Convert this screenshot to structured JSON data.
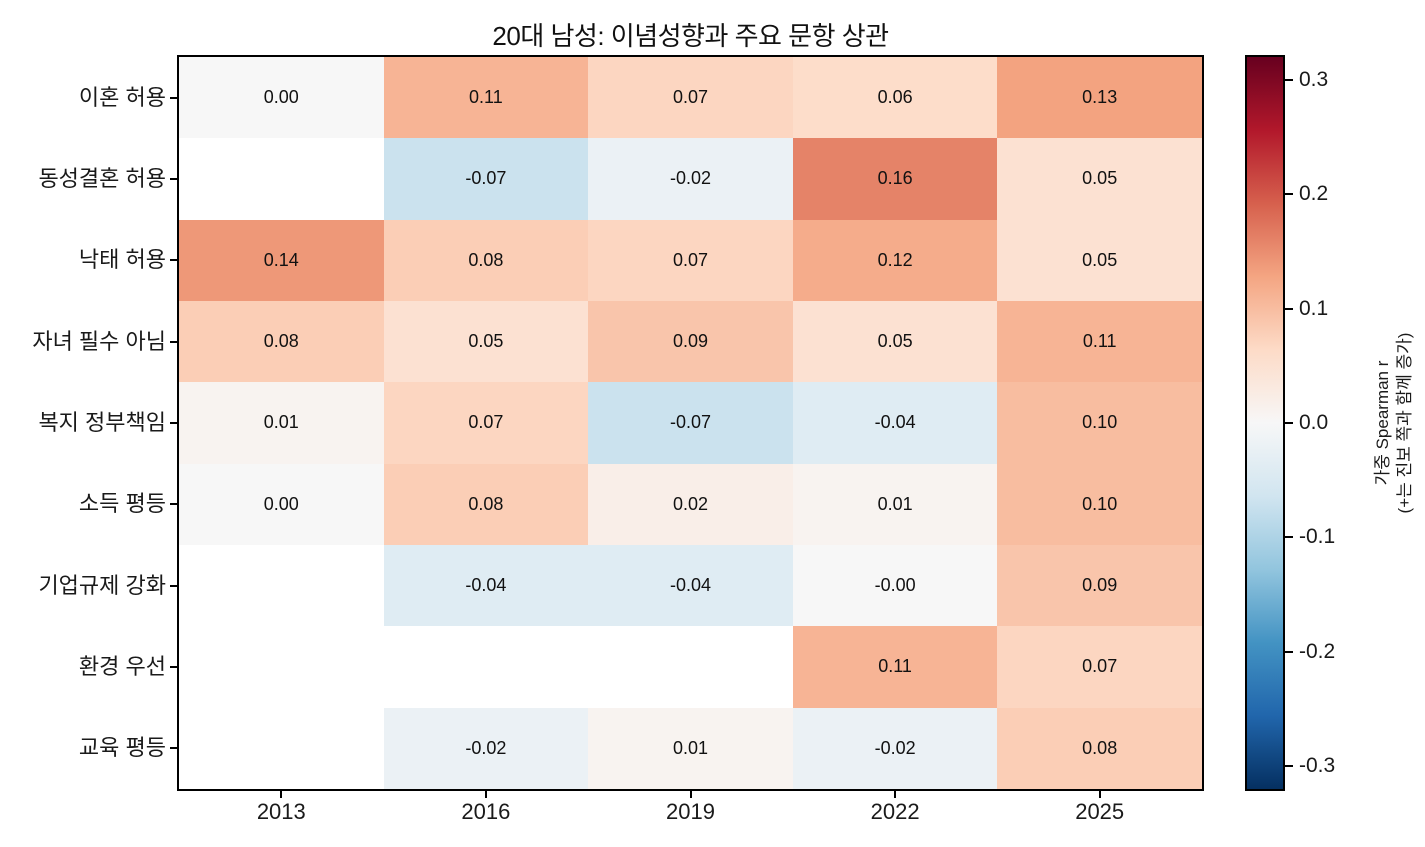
{
  "chart_data": {
    "type": "heatmap",
    "title": "20대 남성: 이념성향과 주요 문항 상관",
    "columns": [
      "2013",
      "2016",
      "2019",
      "2022",
      "2025"
    ],
    "rows": [
      "이혼 허용",
      "동성결혼 허용",
      "낙태 허용",
      "자녀 필수 아님",
      "복지 정부책임",
      "소득 평등",
      "기업규제 강화",
      "환경 우선",
      "교육 평등"
    ],
    "values": [
      [
        0.0,
        0.11,
        0.07,
        0.06,
        0.13
      ],
      [
        null,
        -0.07,
        -0.02,
        0.16,
        0.05
      ],
      [
        0.14,
        0.08,
        0.07,
        0.12,
        0.05
      ],
      [
        0.08,
        0.05,
        0.09,
        0.05,
        0.11
      ],
      [
        0.01,
        0.07,
        -0.07,
        -0.04,
        0.1
      ],
      [
        0.0,
        0.08,
        0.02,
        0.01,
        0.1
      ],
      [
        null,
        -0.04,
        -0.04,
        -0.0,
        0.09
      ],
      [
        null,
        null,
        null,
        0.11,
        0.07
      ],
      [
        null,
        -0.02,
        0.01,
        -0.02,
        0.08
      ]
    ],
    "labels": [
      [
        "0.00",
        "0.11",
        "0.07",
        "0.06",
        "0.13"
      ],
      [
        null,
        "-0.07",
        "-0.02",
        "0.16",
        "0.05"
      ],
      [
        "0.14",
        "0.08",
        "0.07",
        "0.12",
        "0.05"
      ],
      [
        "0.08",
        "0.05",
        "0.09",
        "0.05",
        "0.11"
      ],
      [
        "0.01",
        "0.07",
        "-0.07",
        "-0.04",
        "0.10"
      ],
      [
        "0.00",
        "0.08",
        "0.02",
        "0.01",
        "0.10"
      ],
      [
        null,
        "-0.04",
        "-0.04",
        "-0.00",
        "0.09"
      ],
      [
        null,
        null,
        null,
        "0.11",
        "0.07"
      ],
      [
        null,
        "-0.02",
        "0.01",
        "-0.02",
        "0.08"
      ]
    ],
    "missing_color": "#ffffff",
    "grid": "off",
    "colorbar": {
      "label_line1": "가중 Spearman r",
      "label_line2": "(+는 진보 쪽과 함께 증가)",
      "ticks": [
        "0.3",
        "0.2",
        "0.1",
        "0.0",
        "-0.1",
        "-0.2",
        "-0.3"
      ],
      "tick_values": [
        0.3,
        0.2,
        0.1,
        0.0,
        -0.1,
        -0.2,
        -0.3
      ],
      "vmin": -0.32,
      "vmax": 0.32,
      "colormap": "RdBu_r"
    }
  }
}
